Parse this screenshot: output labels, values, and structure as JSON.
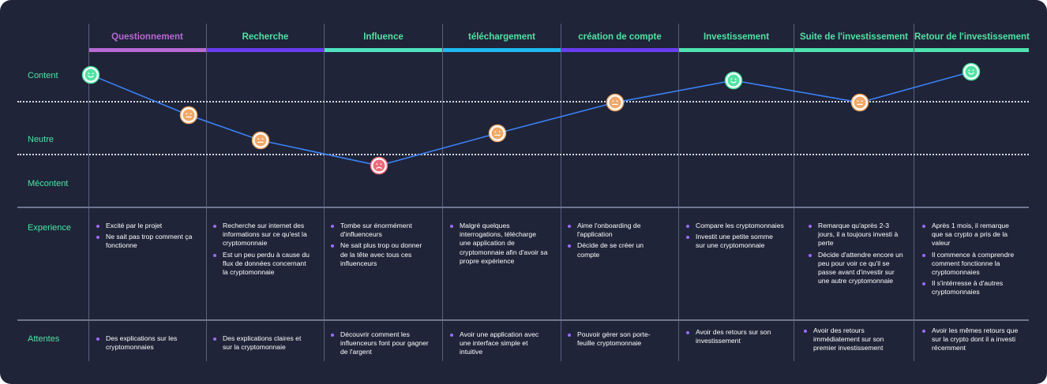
{
  "phases": [
    {
      "label": "Questionnement",
      "color": "#b869d6"
    },
    {
      "label": "Recherche",
      "color": "#4fe3a3"
    },
    {
      "label": "Influence",
      "color": "#4fe3a3"
    },
    {
      "label": "téléchargement",
      "color": "#4fe3a3"
    },
    {
      "label": "création de compte",
      "color": "#4fe3a3"
    },
    {
      "label": "Investissement",
      "color": "#4fe3a3"
    },
    {
      "label": "Suite de l'investissement",
      "color": "#4fe3a3"
    },
    {
      "label": "Retour de l'investissement",
      "color": "#4fe3a3"
    }
  ],
  "phase_bar_colors": [
    "#b869d6",
    "#6a3cf0",
    "#4fe3c0",
    "#1fb8f0",
    "#6a3cf0",
    "#4fe3b0",
    "#4fe3b0",
    "#4fe3b0"
  ],
  "rows": {
    "content": "Content",
    "neutre": "Neutre",
    "mecontent": "Mécontent",
    "experience": "Experience",
    "attentes": "Attentes"
  },
  "emotion_levels": [
    "content",
    "neutre",
    "neutre",
    "mecontent",
    "neutre",
    "neutre",
    "content",
    "neutre",
    "content"
  ],
  "experience": [
    [
      "Excité par le projet",
      "Ne sait pas trop comment ça fonctionne"
    ],
    [
      "Recherche sur internet des informations sur ce qu'est la cryptomonnaie",
      "Est un peu perdu à cause du flux de données concernant la cryptomonnaie"
    ],
    [
      "Tombe sur énormément d'influenceurs",
      "Ne sait plus trop ou donner de la tête avec tous ces influenceurs"
    ],
    [
      "Malgré quelques interrogations, télécharge une application de cryptomonnaie afin d'avoir sa propre expérience"
    ],
    [
      "Aime l'onboarding de l'application",
      "Décide de se créer un compte"
    ],
    [
      "Compare les cryptomonnaies",
      "Investit une petite somme sur une cryptomonnaie"
    ],
    [
      "Remarque qu'après 2-3 jours, il a toujours investi à perte",
      "Décide d'attendre encore un peu pour voir ce qu'il se passe avant d'investir sur une autre cryptomonnaie"
    ],
    [
      "Après 1 mois, il remarque que sa crypto a pris de la valeur",
      "Il commence à comprendre comment fonctionne la cryptomonnaies",
      "Il s'intérresse à d'autres cryptomonnaies"
    ]
  ],
  "attentes": [
    [
      "Des explications sur les cryptomonnaies"
    ],
    [
      "Des explications claires et sur la cryptomonnaie"
    ],
    [
      "Découvrir comment les influenceurs font pour gagner de l'argent"
    ],
    [
      "Avoir une application avec une interface simple et intuitive"
    ],
    [
      "Pouvoir gérer son porte-feuille cryptomonnaie"
    ],
    [
      "Avoir des retours sur son investissement"
    ],
    [
      "Avoir des retours immédiatement sur son premier investissement"
    ],
    [
      "Avoir les mêmes retours que sur la crypto dont il a investi récemment"
    ]
  ],
  "colors": {
    "content": "#4fe3a3",
    "neutre": "#f0a868",
    "mecontent": "#f06a7a",
    "curve": "#3b82f6",
    "bullet": "#9b6bff"
  }
}
